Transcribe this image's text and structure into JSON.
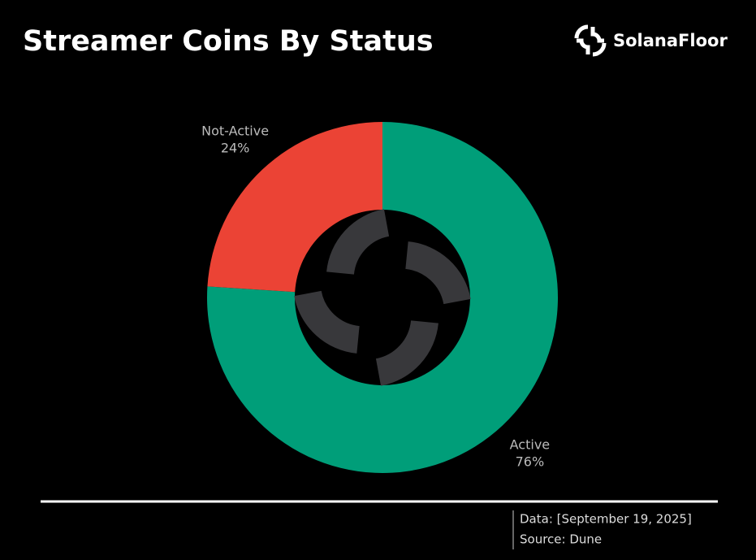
{
  "chart_data": {
    "type": "pie",
    "title": "Streamer Coins By Status",
    "brand": "SolanaFloor",
    "categories": [
      "Active",
      "Not-Active"
    ],
    "values": [
      76,
      24
    ],
    "value_labels": [
      "76%",
      "24%"
    ],
    "colors": [
      "#009e79",
      "#eb4335"
    ],
    "donut": true,
    "date_note": "Data: [September 19, 2025]",
    "source": "Source: Dune"
  }
}
